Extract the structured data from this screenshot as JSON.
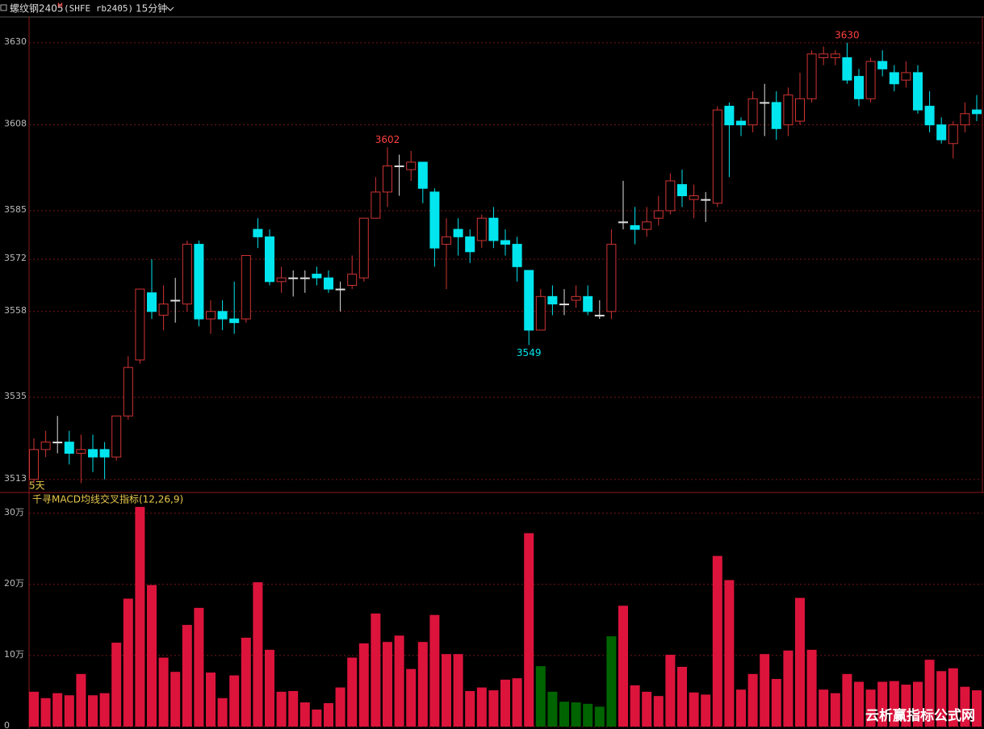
{
  "header": {
    "symbol": "螺纹钢2405",
    "marker": "M",
    "code": "(SHFE rb2405)",
    "period": "15分钟"
  },
  "chart_data": [
    {
      "type": "candlestick",
      "open": [
        3513,
        3521,
        3523,
        3523,
        3520,
        3521,
        3521,
        3519,
        3530,
        3545,
        3563,
        3557,
        3561,
        3560,
        3576,
        3556,
        3558,
        3556,
        3556,
        3580,
        3578,
        3566,
        3567,
        3567,
        3568,
        3567,
        3564,
        3565,
        3567,
        3583,
        3590,
        3597,
        3596,
        3598,
        3590,
        3576,
        3580,
        3578,
        3577,
        3583,
        3577,
        3576,
        3569,
        3553,
        3562,
        3560,
        3561,
        3562,
        3557,
        3558,
        3582,
        3581,
        3580,
        3583,
        3585,
        3592,
        3588,
        3588,
        3587,
        3613,
        3609,
        3608,
        3614,
        3614,
        3608,
        3609,
        3615,
        3626,
        3626,
        3626,
        3621,
        3615,
        3625,
        3622,
        3620,
        3622,
        3613,
        3608,
        3603,
        3608,
        3612
      ],
      "high": [
        3524,
        3526,
        3530,
        3526,
        3525,
        3525,
        3523,
        3530,
        3546,
        3564,
        3572,
        3565,
        3567,
        3577,
        3577,
        3561,
        3561,
        3566,
        3573,
        3583,
        3580,
        3570,
        3569,
        3569,
        3570,
        3569,
        3566,
        3573,
        3583,
        3594,
        3602,
        3600,
        3601,
        3598,
        3591,
        3583,
        3583,
        3580,
        3584,
        3586,
        3580,
        3578,
        3569,
        3564,
        3565,
        3564,
        3565,
        3565,
        3561,
        3580,
        3593,
        3586,
        3586,
        3589,
        3595,
        3596,
        3592,
        3590,
        3613,
        3614,
        3610,
        3617,
        3619,
        3617,
        3618,
        3622,
        3628,
        3629,
        3628,
        3630,
        3623,
        3626,
        3628,
        3624,
        3625,
        3624,
        3617,
        3610,
        3609,
        3614,
        3616
      ],
      "low": [
        3512,
        3519,
        3520,
        3517,
        3512,
        3515,
        3513,
        3518,
        3529,
        3544,
        3556,
        3553,
        3555,
        3558,
        3554,
        3552,
        3553,
        3552,
        3555,
        3575,
        3565,
        3563,
        3562,
        3563,
        3565,
        3563,
        3558,
        3564,
        3566,
        3583,
        3586,
        3589,
        3593,
        3587,
        3570,
        3564,
        3573,
        3571,
        3575,
        3575,
        3573,
        3566,
        3549,
        3553,
        3557,
        3557,
        3559,
        3557,
        3556,
        3556,
        3580,
        3576,
        3578,
        3581,
        3584,
        3586,
        3583,
        3582,
        3586,
        3594,
        3605,
        3606,
        3605,
        3604,
        3605,
        3608,
        3614,
        3624,
        3624,
        3619,
        3613,
        3614,
        3621,
        3617,
        3618,
        3611,
        3606,
        3603,
        3599,
        3606,
        3609
      ],
      "close": [
        3521,
        3523,
        3523,
        3520,
        3521,
        3519,
        3519,
        3530,
        3543,
        3564,
        3558,
        3560,
        3561,
        3576,
        3556,
        3558,
        3556,
        3555,
        3573,
        3578,
        3566,
        3567,
        3567,
        3567,
        3567,
        3564,
        3564,
        3568,
        3583,
        3590,
        3597,
        3597,
        3598,
        3591,
        3575,
        3578,
        3578,
        3574,
        3583,
        3577,
        3576,
        3570,
        3553,
        3562,
        3560,
        3560,
        3562,
        3558,
        3557,
        3576,
        3582,
        3580,
        3582,
        3585,
        3593,
        3589,
        3589,
        3588,
        3612,
        3608,
        3608,
        3615,
        3614,
        3607,
        3616,
        3615,
        3627,
        3627,
        3627,
        3620,
        3615,
        3625,
        3623,
        3619,
        3622,
        3612,
        3608,
        3604,
        3608,
        3611,
        3611
      ],
      "up_color": "#d03434",
      "down_color": "#00e5ee",
      "doji_color": "#e0e0e0",
      "ylim": [
        3509.5,
        3636.7
      ],
      "yticks": [
        3513,
        3535,
        3558,
        3572,
        3585,
        3608,
        3630
      ],
      "grid": true,
      "high_labels": [
        3602,
        3630
      ],
      "low_labels": [
        3549
      ],
      "range_label": "5天"
    },
    {
      "type": "bar",
      "title": "千寻MACD均线交叉指标(12,26,9)",
      "values": [
        4.9,
        4.0,
        4.7,
        4.4,
        7.4,
        4.4,
        4.7,
        11.8,
        18.0,
        30.9,
        19.9,
        9.7,
        7.7,
        14.3,
        16.7,
        7.6,
        4.0,
        7.2,
        12.5,
        20.3,
        10.8,
        4.9,
        5.0,
        3.4,
        2.4,
        3.3,
        5.5,
        9.7,
        11.7,
        15.9,
        11.9,
        12.8,
        8.1,
        11.9,
        15.7,
        10.2,
        10.2,
        5.0,
        5.5,
        5.1,
        6.6,
        6.8,
        27.2,
        8.5,
        4.9,
        3.5,
        3.4,
        3.2,
        2.8,
        12.7,
        17.0,
        5.8,
        4.9,
        4.3,
        10.1,
        8.4,
        4.8,
        4.5,
        24.0,
        20.6,
        5.2,
        7.4,
        10.2,
        6.7,
        10.7,
        18.1,
        10.8,
        5.2,
        4.7,
        7.4,
        6.3,
        5.2,
        6.3,
        6.4,
        5.9,
        6.3,
        9.4,
        7.8,
        8.2,
        5.6,
        5.1
      ],
      "colors": [
        "#dc143c",
        "#dc143c",
        "#dc143c",
        "#dc143c",
        "#dc143c",
        "#dc143c",
        "#dc143c",
        "#dc143c",
        "#dc143c",
        "#dc143c",
        "#dc143c",
        "#dc143c",
        "#dc143c",
        "#dc143c",
        "#dc143c",
        "#dc143c",
        "#dc143c",
        "#dc143c",
        "#dc143c",
        "#dc143c",
        "#dc143c",
        "#dc143c",
        "#dc143c",
        "#dc143c",
        "#dc143c",
        "#dc143c",
        "#dc143c",
        "#dc143c",
        "#dc143c",
        "#dc143c",
        "#dc143c",
        "#dc143c",
        "#dc143c",
        "#dc143c",
        "#dc143c",
        "#dc143c",
        "#dc143c",
        "#dc143c",
        "#dc143c",
        "#dc143c",
        "#dc143c",
        "#dc143c",
        "#dc143c",
        "#006400",
        "#006400",
        "#006400",
        "#006400",
        "#006400",
        "#006400",
        "#006400",
        "#dc143c",
        "#dc143c",
        "#dc143c",
        "#dc143c",
        "#dc143c",
        "#dc143c",
        "#dc143c",
        "#dc143c",
        "#dc143c",
        "#dc143c",
        "#dc143c",
        "#dc143c",
        "#dc143c",
        "#dc143c",
        "#dc143c",
        "#dc143c",
        "#dc143c",
        "#dc143c",
        "#dc143c",
        "#dc143c",
        "#dc143c",
        "#dc143c",
        "#dc143c",
        "#dc143c",
        "#dc143c",
        "#dc143c",
        "#dc143c",
        "#dc143c",
        "#dc143c",
        "#dc143c",
        "#dc143c"
      ],
      "ylim": [
        0,
        32.7
      ],
      "yticks": [
        0,
        {
          "value": 10,
          "label": "10万"
        },
        {
          "value": 20,
          "label": "20万"
        },
        {
          "value": 30,
          "label": "30万"
        }
      ],
      "grid": true
    }
  ],
  "watermark": "云析赢指标公式网"
}
